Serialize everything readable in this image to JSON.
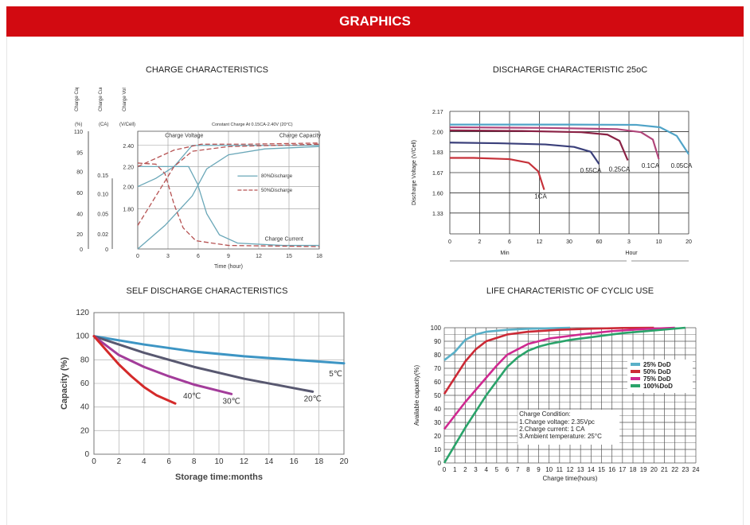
{
  "header": {
    "title": "GRAPHICS"
  },
  "chart_titles": {
    "charge": "CHARGE CHARACTERISTICS",
    "discharge": "DISCHARGE CHARACTERISTIC 25oC",
    "self": "SELF DISCHARGE CHARACTERISTICS",
    "life": "LIFE CHARACTERISTIC OF CYCLIC USE"
  },
  "chart_data": [
    {
      "type": "line",
      "id": "charge",
      "title": "CHARGE CHARACTERISTICS",
      "xlabel": "Time (hour)",
      "x_ticks": [
        0,
        3,
        6,
        9,
        12,
        15,
        18
      ],
      "x_tick_labels": [
        "0",
        "3",
        "6",
        "9",
        "12",
        "15",
        "18"
      ],
      "axis_headers": [
        "Charge Capacity",
        "Charge Current",
        "Charge Voltage"
      ],
      "axis_units": [
        "(%)",
        "(CA)",
        "(V/Cell)"
      ],
      "capacity_ticks": [
        "110",
        "95",
        "80",
        "60",
        "40",
        "20",
        "0"
      ],
      "current_ticks": [
        "0.15",
        "0.10",
        "0.05",
        "0.02",
        "0"
      ],
      "voltage_ticks": [
        "2.40",
        "2.20",
        "2.00",
        "1.80"
      ],
      "condition": "Constant Charge At 0.15CA-2.40V (20°C)",
      "curve_labels": [
        "Charge Voltage",
        "Charge Capacity",
        "Charge Current"
      ],
      "legend": [
        "80%Discharge",
        "50%Discharge"
      ],
      "series": [
        {
          "name": "80%Discharge",
          "style": "solid",
          "color": "#6aa7b8"
        },
        {
          "name": "50%Discharge",
          "style": "dashed",
          "color": "#b65252"
        }
      ]
    },
    {
      "type": "line",
      "id": "discharge",
      "title": "DISCHARGE CHARACTERISTIC 25oC",
      "ylabel": "Discharge Voltage (V/Cell)",
      "y_ticks": [
        "2.17",
        "2.00",
        "1.83",
        "1.67",
        "1.60",
        "1.33"
      ],
      "x_tick_labels": [
        "0",
        "2",
        "6",
        "12",
        "30",
        "60",
        "3",
        "10",
        "20"
      ],
      "x_unit_labels": [
        "Min",
        "Hour"
      ],
      "series": [
        {
          "name": "1CA",
          "color": "#c6323a"
        },
        {
          "name": "0.55CA",
          "color": "#3a3f7a"
        },
        {
          "name": "0.25CA",
          "color": "#8a2245"
        },
        {
          "name": "0.1CA",
          "color": "#b0467a"
        },
        {
          "name": "0.05CA",
          "color": "#4fa3c7"
        }
      ]
    },
    {
      "type": "line",
      "id": "self",
      "title": "SELF DISCHARGE CHARACTERISTICS",
      "xlabel": "Storage time:months",
      "ylabel": "Capacity (%)",
      "xlim": [
        0,
        20
      ],
      "ylim": [
        0,
        120
      ],
      "x_ticks": [
        0,
        2,
        4,
        6,
        8,
        10,
        12,
        14,
        16,
        18,
        20
      ],
      "y_ticks": [
        0,
        20,
        40,
        60,
        80,
        100,
        120
      ],
      "series": [
        {
          "name": "5℃",
          "color": "#3d95c4",
          "x": [
            0,
            4,
            8,
            12,
            16,
            20
          ],
          "y": [
            100,
            93,
            87,
            83,
            80,
            77
          ]
        },
        {
          "name": "20℃",
          "color": "#585870",
          "x": [
            0,
            4,
            8,
            12,
            16,
            17.5
          ],
          "y": [
            100,
            86,
            74,
            64,
            56,
            53
          ]
        },
        {
          "name": "30℃",
          "color": "#a33c9a",
          "x": [
            0,
            2,
            4,
            6,
            8,
            11
          ],
          "y": [
            100,
            84,
            74,
            66,
            59,
            51
          ]
        },
        {
          "name": "40℃",
          "color": "#d42a2a",
          "x": [
            0,
            1,
            2,
            3,
            4,
            5,
            6.5
          ],
          "y": [
            100,
            88,
            76,
            66,
            57,
            50,
            43
          ]
        }
      ]
    },
    {
      "type": "line",
      "id": "life",
      "title": "LIFE CHARACTERISTIC OF CYCLIC USE",
      "xlabel": "Charge time(hours)",
      "ylabel": "Available capacity(%)",
      "xlim": [
        0,
        24
      ],
      "ylim": [
        0,
        100
      ],
      "x_ticks": [
        0,
        1,
        2,
        3,
        4,
        5,
        6,
        7,
        8,
        9,
        10,
        11,
        12,
        13,
        14,
        15,
        16,
        17,
        18,
        19,
        20,
        21,
        22,
        23,
        24
      ],
      "y_ticks": [
        0,
        10,
        20,
        30,
        40,
        50,
        60,
        70,
        80,
        90,
        100
      ],
      "series": [
        {
          "name": "25%  DoD",
          "color": "#5ab0c8",
          "x": [
            0,
            1,
            2,
            3,
            4,
            6,
            8,
            10,
            12
          ],
          "y": [
            76,
            82,
            91,
            95,
            97,
            98.5,
            99.2,
            99.6,
            100
          ]
        },
        {
          "name": "50%  DoD",
          "color": "#cc2a36",
          "x": [
            0,
            1,
            2,
            3,
            4,
            6,
            8,
            11,
            14,
            17,
            20
          ],
          "y": [
            51,
            63,
            75,
            84,
            90,
            95,
            97,
            98.5,
            99.3,
            99.8,
            100
          ]
        },
        {
          "name": "75%  DoD",
          "color": "#cf2990",
          "x": [
            0,
            2,
            4,
            5,
            6,
            7,
            8,
            10,
            13,
            16,
            19,
            22
          ],
          "y": [
            25,
            45,
            63,
            72,
            80,
            84,
            88,
            92,
            95,
            97.5,
            99,
            100
          ]
        },
        {
          "name": "100%DoD",
          "color": "#2aa36a",
          "x": [
            0,
            1,
            2,
            4,
            6,
            7,
            8,
            9,
            10,
            12,
            14,
            17,
            20,
            23
          ],
          "y": [
            0,
            13,
            26,
            50,
            71,
            78,
            83,
            86,
            88,
            91,
            93,
            96,
            98,
            100
          ]
        }
      ],
      "note_title": "Charge Condition:",
      "notes": [
        "1.Charge voltage: 2.35Vpc",
        "2.Charge current: 1 CA",
        "3.Ambient temperature: 25°C"
      ]
    }
  ]
}
